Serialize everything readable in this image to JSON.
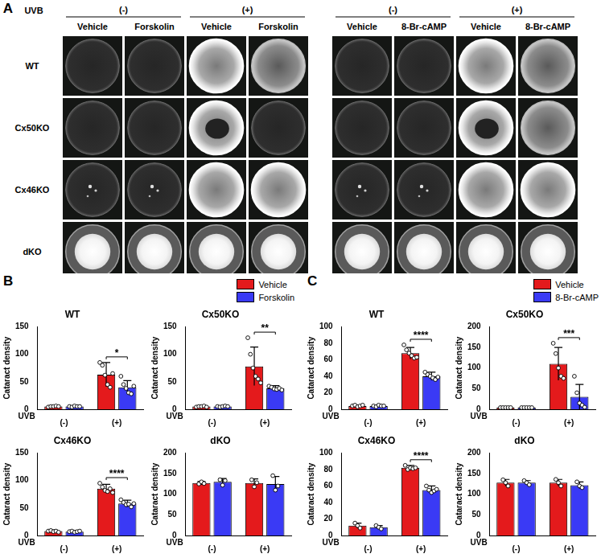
{
  "panel_a": {
    "label": "A",
    "header": "UVB",
    "uvb_states": [
      "(-)",
      "(+)"
    ],
    "blocks": [
      {
        "treatments": [
          "Vehicle",
          "Forskolin"
        ]
      },
      {
        "treatments": [
          "Vehicle",
          "8-Br-cAMP"
        ]
      }
    ],
    "rows": [
      "WT",
      "Cx50KO",
      "Cx46KO",
      "dKO"
    ]
  },
  "chart_data": [
    {
      "type": "bar",
      "panel": "B",
      "title": "WT",
      "categories": [
        "(-)",
        "(+)"
      ],
      "x_label": "UVB",
      "y_label": "Cataract density",
      "ylim": [
        0,
        150
      ],
      "yticks": [
        0,
        50,
        100,
        150
      ],
      "series": [
        {
          "name": "Vehicle",
          "color": "#e41a1c",
          "values": [
            5,
            63
          ],
          "errors": [
            1,
            22
          ],
          "points": [
            [
              4,
              5,
              5,
              6,
              5
            ],
            [
              85,
              80,
              62,
              45,
              40,
              65
            ]
          ]
        },
        {
          "name": "Forskolin",
          "color": "#3a3af5",
          "values": [
            5,
            40
          ],
          "errors": [
            1,
            12
          ],
          "points": [
            [
              5,
              4,
              6,
              5,
              5
            ],
            [
              60,
              45,
              38,
              30,
              28,
              42
            ]
          ]
        }
      ],
      "significance": [
        {
          "category": "(+)",
          "label": "*"
        }
      ]
    },
    {
      "type": "bar",
      "panel": "B",
      "title": "Cx50KO",
      "categories": [
        "(-)",
        "(+)"
      ],
      "x_label": "UVB",
      "y_label": "Cataract density",
      "ylim": [
        0,
        150
      ],
      "yticks": [
        0,
        50,
        100,
        150
      ],
      "legend": "top right",
      "series": [
        {
          "name": "Vehicle",
          "color": "#e41a1c",
          "values": [
            5,
            78
          ],
          "errors": [
            1,
            35
          ],
          "points": [
            [
              4,
              5,
              5,
              6,
              4
            ],
            [
              130,
              100,
              75,
              60,
              55,
              48
            ]
          ]
        },
        {
          "name": "Forskolin",
          "color": "#3a3af5",
          "values": [
            5,
            38
          ],
          "errors": [
            1,
            5
          ],
          "points": [
            [
              5,
              4,
              5,
              6,
              5
            ],
            [
              42,
              40,
              37,
              36,
              38,
              35
            ]
          ]
        }
      ],
      "significance": [
        {
          "category": "(+)",
          "label": "**"
        }
      ]
    },
    {
      "type": "bar",
      "panel": "B",
      "title": "Cx46KO",
      "categories": [
        "(-)",
        "(+)"
      ],
      "x_label": "UVB",
      "y_label": "Cataract density",
      "ylim": [
        0,
        150
      ],
      "yticks": [
        0,
        50,
        100,
        150
      ],
      "series": [
        {
          "name": "Vehicle",
          "color": "#e41a1c",
          "values": [
            8,
            85
          ],
          "errors": [
            2,
            8
          ],
          "points": [
            [
              8,
              9,
              7,
              8,
              6
            ],
            [
              95,
              88,
              82,
              80,
              85,
              78
            ]
          ]
        },
        {
          "name": "Forskolin",
          "color": "#3a3af5",
          "values": [
            7,
            58
          ],
          "errors": [
            2,
            6
          ],
          "points": [
            [
              7,
              8,
              6,
              7,
              8
            ],
            [
              65,
              60,
              56,
              57,
              52,
              58
            ]
          ]
        }
      ],
      "significance": [
        {
          "category": "(+)",
          "label": "****"
        }
      ]
    },
    {
      "type": "bar",
      "panel": "B",
      "title": "dKO",
      "categories": [
        "(-)",
        "(+)"
      ],
      "x_label": "UVB",
      "y_label": "Cataract density",
      "ylim": [
        0,
        200
      ],
      "yticks": [
        0,
        50,
        100,
        150,
        200
      ],
      "series": [
        {
          "name": "Vehicle",
          "color": "#e41a1c",
          "values": [
            127,
            127
          ],
          "errors": [
            4,
            10
          ],
          "points": [
            [
              125,
              130,
              126
            ],
            [
              135,
              118,
              128
            ]
          ]
        },
        {
          "name": "Forskolin",
          "color": "#3a3af5",
          "values": [
            130,
            125
          ],
          "errors": [
            8,
            18
          ],
          "points": [
            [
              135,
              122,
              133
            ],
            [
              145,
              110,
              120
            ]
          ]
        }
      ]
    },
    {
      "type": "bar",
      "panel": "C",
      "title": "WT",
      "categories": [
        "(-)",
        "(+)"
      ],
      "x_label": "UVB",
      "y_label": "Cataract density",
      "ylim": [
        0,
        100
      ],
      "yticks": [
        0,
        20,
        40,
        60,
        80,
        100
      ],
      "series": [
        {
          "name": "Vehicle",
          "color": "#e41a1c",
          "values": [
            4,
            68
          ],
          "errors": [
            1,
            7
          ],
          "points": [
            [
              4,
              5,
              3,
              4,
              5
            ],
            [
              78,
              72,
              68,
              65,
              62,
              63
            ]
          ]
        },
        {
          "name": "8-Br-cAMP",
          "color": "#3a3af5",
          "values": [
            4,
            40
          ],
          "errors": [
            1,
            5
          ],
          "points": [
            [
              4,
              3,
              5,
              4,
              4
            ],
            [
              45,
              42,
              40,
              38,
              36,
              39
            ]
          ]
        }
      ],
      "significance": [
        {
          "category": "(+)",
          "label": "****"
        }
      ]
    },
    {
      "type": "bar",
      "panel": "C",
      "title": "Cx50KO",
      "categories": [
        "(-)",
        "(+)"
      ],
      "x_label": "UVB",
      "y_label": "Cataract density",
      "ylim": [
        0,
        200
      ],
      "yticks": [
        0,
        50,
        100,
        150,
        200
      ],
      "legend": "top right",
      "series": [
        {
          "name": "Vehicle",
          "color": "#e41a1c",
          "values": [
            4,
            110
          ],
          "errors": [
            1,
            40
          ],
          "points": [
            [
              4,
              4,
              4,
              4,
              4
            ],
            [
              160,
              135,
              100,
              80,
              75
            ]
          ]
        },
        {
          "name": "8-Br-cAMP",
          "color": "#3a3af5",
          "values": [
            4,
            30
          ],
          "errors": [
            1,
            30
          ],
          "points": [
            [
              4,
              4,
              4,
              4,
              4
            ],
            [
              80,
              40,
              15,
              10,
              5
            ]
          ]
        }
      ],
      "significance": [
        {
          "category": "(+)",
          "label": "***"
        }
      ]
    },
    {
      "type": "bar",
      "panel": "C",
      "title": "Cx46KO",
      "categories": [
        "(-)",
        "(+)"
      ],
      "x_label": "UVB",
      "y_label": "Cataract density",
      "ylim": [
        0,
        100
      ],
      "yticks": [
        0,
        20,
        40,
        60,
        80,
        100
      ],
      "series": [
        {
          "name": "Vehicle",
          "color": "#e41a1c",
          "values": [
            12,
            82
          ],
          "errors": [
            3,
            3
          ],
          "points": [
            [
              15,
              12,
              9
            ],
            [
              85,
              80,
              82,
              81,
              82
            ]
          ]
        },
        {
          "name": "8-Br-cAMP",
          "color": "#3a3af5",
          "values": [
            10,
            55
          ],
          "errors": [
            2,
            5
          ],
          "points": [
            [
              12,
              10,
              8
            ],
            [
              60,
              55,
              52,
              54,
              56
            ]
          ]
        }
      ],
      "significance": [
        {
          "category": "(+)",
          "label": "****"
        }
      ]
    },
    {
      "type": "bar",
      "panel": "C",
      "title": "dKO",
      "categories": [
        "(-)",
        "(+)"
      ],
      "x_label": "UVB",
      "y_label": "Cataract density",
      "ylim": [
        0,
        200
      ],
      "yticks": [
        0,
        50,
        100,
        150,
        200
      ],
      "series": [
        {
          "name": "Vehicle",
          "color": "#e41a1c",
          "values": [
            128,
            128
          ],
          "errors": [
            8,
            8
          ],
          "points": [
            [
              135,
              128,
              120
            ],
            [
              136,
              128,
              120
            ]
          ]
        },
        {
          "name": "8-Br-cAMP",
          "color": "#3a3af5",
          "values": [
            128,
            122
          ],
          "errors": [
            5,
            8
          ],
          "points": [
            [
              133,
              128,
              123
            ],
            [
              130,
              120,
              116
            ]
          ]
        }
      ]
    }
  ]
}
